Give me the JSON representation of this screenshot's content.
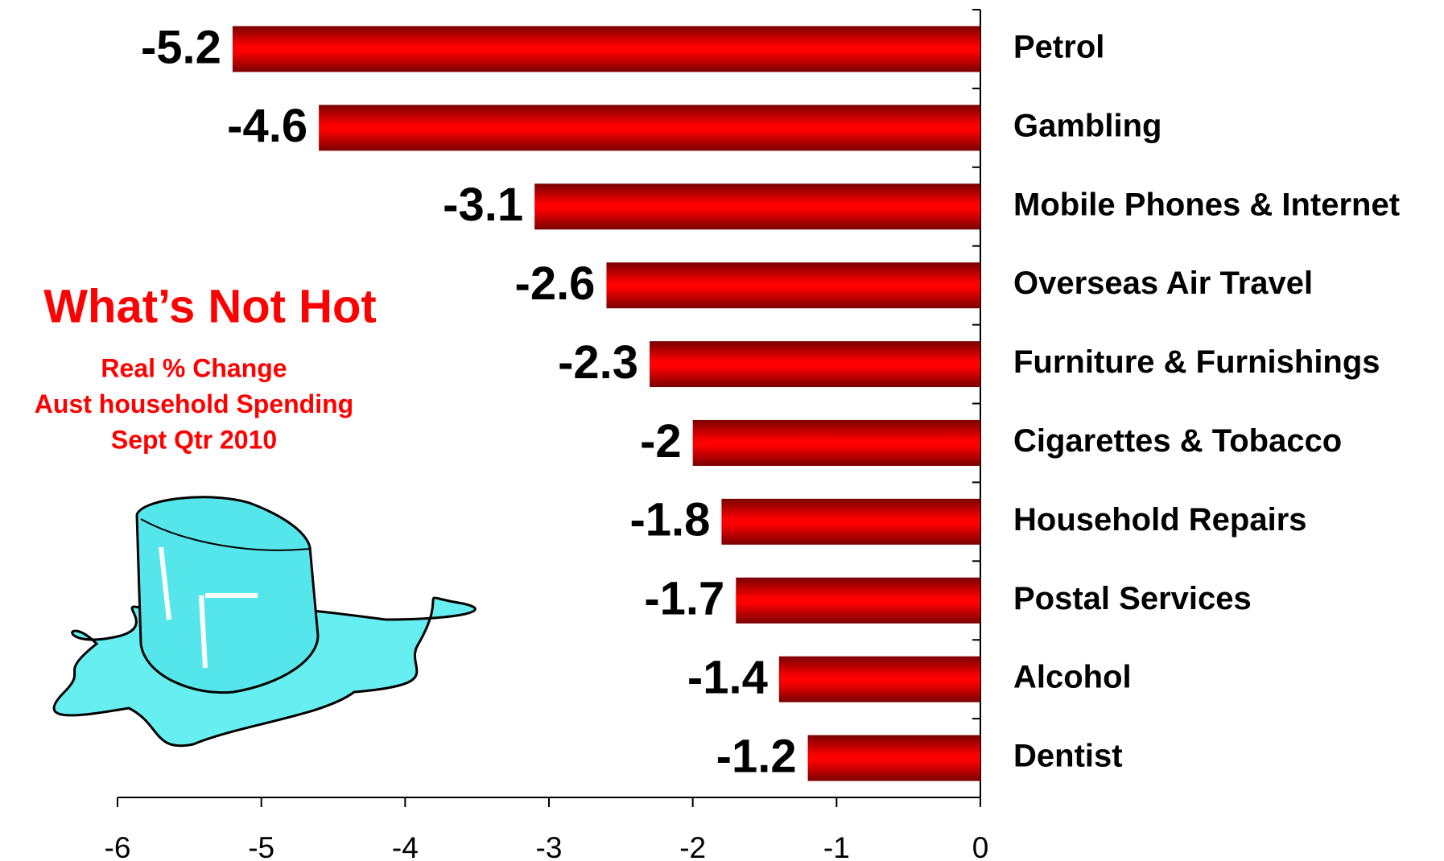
{
  "chart_data": {
    "type": "bar",
    "orientation": "horizontal",
    "title": "What’s Not Hot",
    "subtitle": [
      "Real % Change",
      "Aust household Spending",
      "Sept Qtr 2010"
    ],
    "categories": [
      "Petrol",
      "Gambling",
      "Mobile Phones & Internet",
      "Overseas Air Travel",
      "Furniture & Furnishings",
      "Cigarettes & Tobacco",
      "Household Repairs",
      "Postal Services",
      "Alcohol",
      "Dentist"
    ],
    "values": [
      -5.2,
      -4.6,
      -3.1,
      -2.6,
      -2.3,
      -2,
      -1.8,
      -1.7,
      -1.4,
      -1.2
    ],
    "color": "#ff0000",
    "xlim": [
      -6,
      0
    ],
    "xticks": [
      -6,
      -5,
      -4,
      -3,
      -2,
      -1,
      0
    ]
  }
}
